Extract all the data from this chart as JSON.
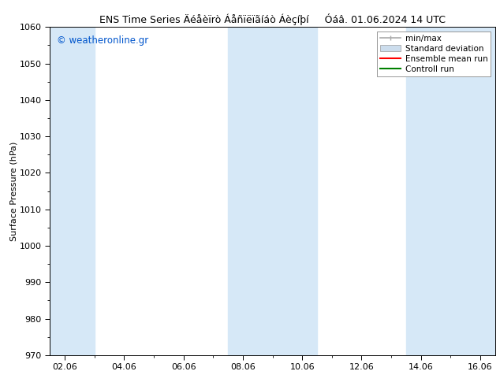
{
  "title": "ENS Time Series Äéåèïrò Áåñïëïãíáò Áèçíþí     Óáâ. 01.06.2024 14 UTC",
  "ylabel": "Surface Pressure (hPa)",
  "ylim": [
    970,
    1060
  ],
  "yticks": [
    970,
    980,
    990,
    1000,
    1010,
    1020,
    1030,
    1040,
    1050,
    1060
  ],
  "xlim_start": 1.5,
  "xlim_end": 16.5,
  "xtick_labels": [
    "02.06",
    "04.06",
    "06.06",
    "08.06",
    "10.06",
    "12.06",
    "14.06",
    "16.06"
  ],
  "xtick_positions": [
    2,
    4,
    6,
    8,
    10,
    12,
    14,
    16
  ],
  "bg_color": "#ffffff",
  "plot_bg_color": "#ffffff",
  "shaded_columns": [
    {
      "x_start": 1.5,
      "x_end": 3.0,
      "color": "#d6e8f7"
    },
    {
      "x_start": 7.5,
      "x_end": 10.5,
      "color": "#d6e8f7"
    },
    {
      "x_start": 13.5,
      "x_end": 16.5,
      "color": "#d6e8f7"
    }
  ],
  "legend_items": [
    {
      "label": "min/max",
      "color": "#aaaaaa",
      "type": "errorbar"
    },
    {
      "label": "Standard deviation",
      "color": "#ccdded",
      "type": "band"
    },
    {
      "label": "Ensemble mean run",
      "color": "#ff0000",
      "type": "line"
    },
    {
      "label": "Controll run",
      "color": "#008000",
      "type": "line"
    }
  ],
  "watermark": "© weatheronline.gr",
  "watermark_color": "#0055cc",
  "title_fontsize": 9,
  "tick_fontsize": 8,
  "ylabel_fontsize": 8,
  "legend_fontsize": 7.5
}
